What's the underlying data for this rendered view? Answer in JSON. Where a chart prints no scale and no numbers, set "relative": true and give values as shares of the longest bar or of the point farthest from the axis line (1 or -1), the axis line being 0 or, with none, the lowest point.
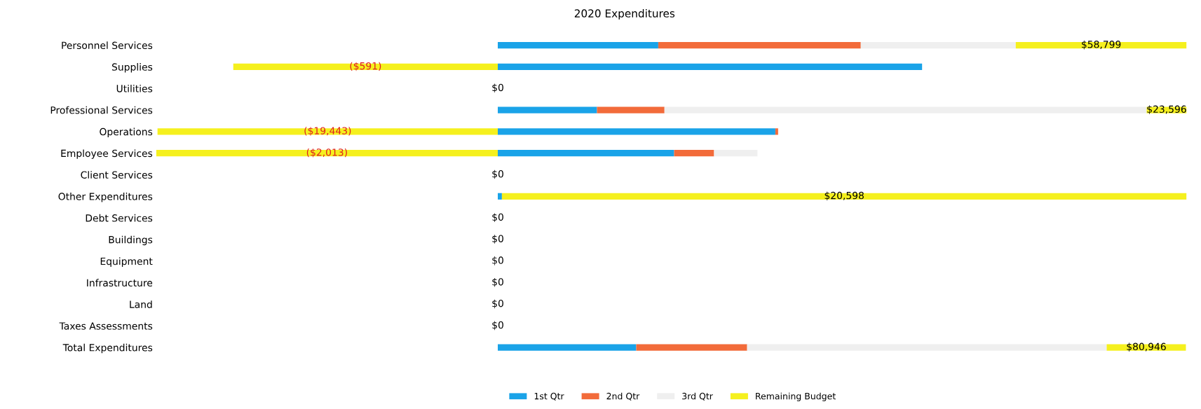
{
  "chart_data": {
    "type": "bar",
    "orientation": "horizontal",
    "stacked": true,
    "relative": true,
    "title": "2020 Expenditures",
    "legend": "bottom",
    "categories": [
      "Personnel Services",
      "Supplies",
      "Utilities",
      "Professional Services",
      "Operations",
      "Employee Services",
      "Client Services",
      "Other Expenditures",
      "Debt Services",
      "Buildings",
      "Equipment",
      "Infrastructure",
      "Land",
      "Taxes Assessments",
      "Total Expenditures"
    ],
    "series": [
      {
        "name": "1st Qtr",
        "color": "#1aa3e8",
        "values": [
          0.233,
          0.616,
          0,
          0.144,
          0.403,
          0.256,
          0,
          0.006,
          0,
          0,
          0,
          0,
          0,
          0,
          0.201
        ]
      },
      {
        "name": "2nd Qtr",
        "color": "#f26b3a",
        "values": [
          0.294,
          0,
          0,
          0.098,
          0.004,
          0.058,
          0,
          0,
          0,
          0,
          0,
          0,
          0,
          0,
          0.161
        ]
      },
      {
        "name": "3rd Qtr",
        "color": "#efefef",
        "values": [
          0.225,
          0,
          0,
          0.7,
          0,
          0.063,
          0,
          0,
          0,
          0,
          0,
          0,
          0,
          0,
          0.522
        ]
      },
      {
        "name": "Remaining Budget",
        "color": "#f5f01e",
        "values": [
          0.248,
          -0.384,
          0,
          0.058,
          -0.494,
          -0.496,
          0,
          0.994,
          0,
          0,
          0,
          0,
          0,
          0,
          0.115
        ]
      }
    ],
    "annotations": [
      {
        "text": "$58,799",
        "x": 0.876,
        "y": "Personnel Services"
      },
      {
        "text": "($591)",
        "x": -0.192,
        "y": "Supplies"
      },
      {
        "text": "$0",
        "x": 0,
        "y": "Utilities"
      },
      {
        "text": "$23,596",
        "x": 0.971,
        "y": "Professional Services"
      },
      {
        "text": "($19,443)",
        "x": -0.247,
        "y": "Operations"
      },
      {
        "text": "($2,013)",
        "x": -0.248,
        "y": "Employee Services"
      },
      {
        "text": "$0",
        "x": 0,
        "y": "Client Services"
      },
      {
        "text": "$20,598",
        "x": 0.503,
        "y": "Other Expenditures"
      },
      {
        "text": "$0",
        "x": 0,
        "y": "Debt Services"
      },
      {
        "text": "$0",
        "x": 0,
        "y": "Buildings"
      },
      {
        "text": "$0",
        "x": 0,
        "y": "Equipment"
      },
      {
        "text": "$0",
        "x": 0,
        "y": "Infrastructure"
      },
      {
        "text": "$0",
        "x": 0,
        "y": "Land"
      },
      {
        "text": "$0",
        "x": 0,
        "y": "Taxes Assessments"
      },
      {
        "text": "$80,946",
        "x": 0.9415,
        "y": "Total Expenditures"
      }
    ]
  }
}
